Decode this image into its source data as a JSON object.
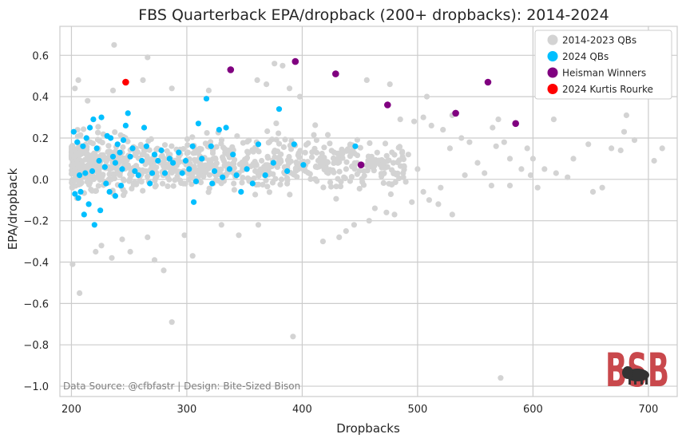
{
  "chart_data": {
    "type": "scatter",
    "title": "FBS Quarterback EPA/dropback (200+ dropbacks): 2014-2024",
    "xlabel": "Dropbacks",
    "ylabel": "EPA/dropback",
    "xlim": [
      190,
      725
    ],
    "ylim": [
      -1.05,
      0.74
    ],
    "xticks": [
      200,
      300,
      400,
      500,
      600,
      700
    ],
    "yticks": [
      -1.0,
      -0.8,
      -0.6,
      -0.4,
      -0.2,
      0.0,
      0.2,
      0.4,
      0.6
    ],
    "xtick_labels": [
      "200",
      "300",
      "400",
      "500",
      "600",
      "700"
    ],
    "ytick_labels": [
      "−1.0",
      "−0.8",
      "−0.6",
      "−0.4",
      "−0.2",
      "0.0",
      "0.2",
      "0.4",
      "0.6"
    ],
    "grid": true,
    "legend_position": "top-right",
    "annotation": "Data Source: @cfbfastr | Design: Bite-Sized Bison",
    "logo_text": "BSB",
    "series": [
      {
        "name": "2014-2023 QBs",
        "color": "#d3d3d3",
        "random_fill": {
          "count": 900,
          "seed": 7
        },
        "points": [
          [
            201,
            -0.41
          ],
          [
            207,
            -0.55
          ],
          [
            221,
            -0.35
          ],
          [
            235,
            -0.38
          ],
          [
            251,
            -0.35
          ],
          [
            272,
            -0.39
          ],
          [
            280,
            -0.44
          ],
          [
            287,
            -0.69
          ],
          [
            305,
            -0.37
          ],
          [
            345,
            -0.27
          ],
          [
            392,
            -0.76
          ],
          [
            432,
            -0.28
          ],
          [
            572,
            -0.96
          ],
          [
            237,
            0.65
          ],
          [
            266,
            0.59
          ],
          [
            203,
            0.44
          ],
          [
            206,
            0.48
          ],
          [
            214,
            0.38
          ],
          [
            236,
            0.43
          ],
          [
            262,
            0.48
          ],
          [
            287,
            0.44
          ],
          [
            319,
            0.43
          ],
          [
            361,
            0.48
          ],
          [
            369,
            0.46
          ],
          [
            376,
            0.56
          ],
          [
            383,
            0.55
          ],
          [
            389,
            0.44
          ],
          [
            398,
            0.4
          ],
          [
            456,
            0.48
          ],
          [
            476,
            0.46
          ],
          [
            508,
            0.4
          ],
          [
            530,
            0.31
          ],
          [
            538,
            0.2
          ],
          [
            545,
            0.18
          ],
          [
            552,
            0.08
          ],
          [
            565,
            0.25
          ],
          [
            570,
            0.29
          ],
          [
            575,
            0.18
          ],
          [
            580,
            -0.03
          ],
          [
            590,
            0.05
          ],
          [
            595,
            0.15
          ],
          [
            600,
            0.1
          ],
          [
            610,
            0.05
          ],
          [
            618,
            0.29
          ],
          [
            630,
            0.01
          ],
          [
            648,
            0.17
          ],
          [
            652,
            -0.06
          ],
          [
            668,
            0.15
          ],
          [
            676,
            0.14
          ],
          [
            679,
            0.23
          ],
          [
            681,
            0.31
          ],
          [
            705,
            0.09
          ],
          [
            712,
            0.15
          ],
          [
            520,
            -0.04
          ],
          [
            530,
            -0.17
          ],
          [
            541,
            0.02
          ],
          [
            558,
            0.03
          ],
          [
            564,
            -0.03
          ],
          [
            568,
            0.16
          ],
          [
            580,
            0.1
          ],
          [
            598,
            0.02
          ],
          [
            604,
            -0.04
          ],
          [
            620,
            0.03
          ],
          [
            635,
            0.1
          ],
          [
            660,
            -0.04
          ],
          [
            688,
            0.19
          ],
          [
            473,
            -0.16
          ],
          [
            480,
            -0.17
          ],
          [
            463,
            -0.14
          ],
          [
            458,
            -0.2
          ],
          [
            445,
            -0.22
          ],
          [
            438,
            -0.25
          ],
          [
            418,
            -0.3
          ],
          [
            362,
            -0.22
          ],
          [
            330,
            -0.22
          ],
          [
            298,
            -0.27
          ],
          [
            266,
            -0.28
          ],
          [
            244,
            -0.29
          ],
          [
            226,
            -0.32
          ],
          [
            485,
            0.29
          ],
          [
            497,
            0.28
          ],
          [
            505,
            0.3
          ],
          [
            512,
            0.26
          ],
          [
            522,
            0.24
          ],
          [
            528,
            0.15
          ],
          [
            492,
            0.12
          ],
          [
            500,
            0.05
          ],
          [
            505,
            -0.06
          ],
          [
            510,
            -0.1
          ],
          [
            518,
            -0.12
          ],
          [
            495,
            -0.11
          ]
        ]
      },
      {
        "name": "2024 QBs",
        "color": "#00bfff",
        "points": [
          [
            202,
            0.23
          ],
          [
            203,
            -0.07
          ],
          [
            205,
            0.18
          ],
          [
            207,
            0.02
          ],
          [
            208,
            -0.06
          ],
          [
            210,
            0.16
          ],
          [
            212,
            0.03
          ],
          [
            213,
            0.2
          ],
          [
            216,
            0.25
          ],
          [
            219,
            0.29
          ],
          [
            222,
            0.15
          ],
          [
            224,
            0.09
          ],
          [
            226,
            0.3
          ],
          [
            229,
            0.06
          ],
          [
            231,
            0.21
          ],
          [
            234,
            0.2
          ],
          [
            236,
            0.11
          ],
          [
            238,
            0.08
          ],
          [
            240,
            0.17
          ],
          [
            242,
            0.13
          ],
          [
            244,
            0.05
          ],
          [
            245,
            0.19
          ],
          [
            247,
            0.26
          ],
          [
            249,
            0.32
          ],
          [
            251,
            0.11
          ],
          [
            253,
            0.15
          ],
          [
            255,
            0.04
          ],
          [
            258,
            0.02
          ],
          [
            261,
            0.09
          ],
          [
            263,
            0.25
          ],
          [
            265,
            0.16
          ],
          [
            268,
            -0.02
          ],
          [
            270,
            0.03
          ],
          [
            272,
            0.12
          ],
          [
            275,
            0.09
          ],
          [
            278,
            0.14
          ],
          [
            281,
            0.03
          ],
          [
            285,
            0.1
          ],
          [
            288,
            0.08
          ],
          [
            293,
            0.13
          ],
          [
            296,
            0.03
          ],
          [
            299,
            0.09
          ],
          [
            302,
            0.05
          ],
          [
            305,
            0.16
          ],
          [
            308,
            -0.01
          ],
          [
            310,
            0.27
          ],
          [
            313,
            0.1
          ],
          [
            317,
            0.39
          ],
          [
            321,
            0.16
          ],
          [
            324,
            0.04
          ],
          [
            328,
            0.24
          ],
          [
            331,
            0.01
          ],
          [
            334,
            0.25
          ],
          [
            337,
            0.05
          ],
          [
            340,
            0.12
          ],
          [
            343,
            0.02
          ],
          [
            347,
            -0.06
          ],
          [
            352,
            0.05
          ],
          [
            357,
            -0.02
          ],
          [
            362,
            0.17
          ],
          [
            368,
            0.02
          ],
          [
            375,
            0.08
          ],
          [
            380,
            0.34
          ],
          [
            387,
            0.04
          ],
          [
            393,
            0.17
          ],
          [
            401,
            0.07
          ],
          [
            446,
            0.16
          ],
          [
            206,
            -0.09
          ],
          [
            211,
            -0.17
          ],
          [
            215,
            -0.12
          ],
          [
            218,
            0.04
          ],
          [
            220,
            -0.22
          ],
          [
            225,
            -0.15
          ],
          [
            230,
            -0.02
          ],
          [
            233,
            -0.06
          ],
          [
            238,
            -0.08
          ],
          [
            243,
            -0.03
          ],
          [
            306,
            -0.11
          ],
          [
            322,
            -0.02
          ]
        ]
      },
      {
        "name": "Heisman Winners",
        "color": "#800080",
        "points": [
          [
            338,
            0.53
          ],
          [
            394,
            0.57
          ],
          [
            429,
            0.51
          ],
          [
            451,
            0.07
          ],
          [
            474,
            0.36
          ],
          [
            533,
            0.32
          ],
          [
            561,
            0.47
          ],
          [
            585,
            0.27
          ]
        ]
      },
      {
        "name": "2024 Kurtis Rourke",
        "color": "#ff0000",
        "points": [
          [
            247,
            0.47
          ]
        ]
      }
    ]
  },
  "logo": {
    "color": "#c9484c",
    "bison_color": "#333333"
  }
}
